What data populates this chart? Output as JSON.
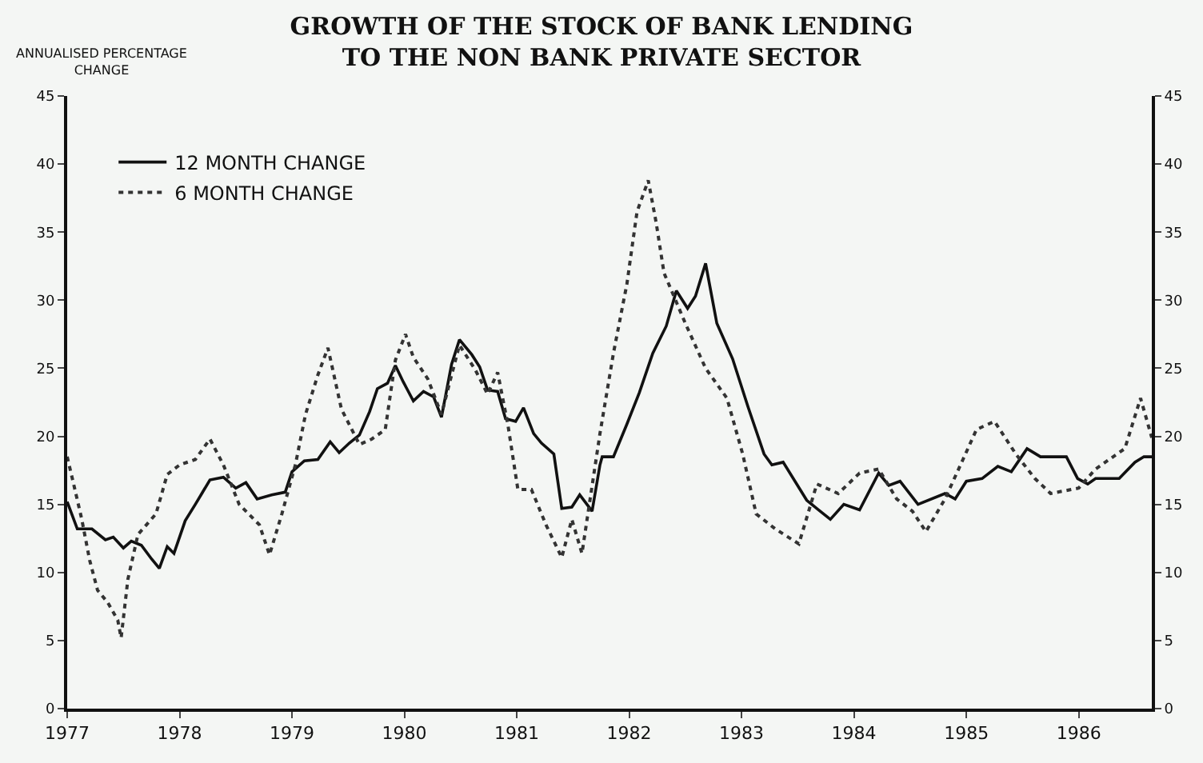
{
  "chart_data": {
    "type": "line",
    "title": "GROWTH OF THE STOCK OF BANK LENDING\nTO THE NON BANK PRIVATE SECTOR",
    "ylabel": "ANNUALISED PERCENTAGE\nCHANGE",
    "series": [
      {
        "name": "12 MONTH CHANGE",
        "color": "#111111",
        "line_style": "solid",
        "x": [
          1977.0,
          1977.09,
          1977.22,
          1977.34,
          1977.41,
          1977.5,
          1977.57,
          1977.66,
          1977.75,
          1977.82,
          1977.89,
          1977.95,
          1978.05,
          1978.14,
          1978.27,
          1978.39,
          1978.5,
          1978.59,
          1978.69,
          1978.82,
          1978.94,
          1979.0,
          1979.11,
          1979.23,
          1979.34,
          1979.42,
          1979.51,
          1979.6,
          1979.69,
          1979.76,
          1979.85,
          1979.92,
          1979.99,
          1980.08,
          1980.17,
          1980.26,
          1980.33,
          1980.42,
          1980.49,
          1980.6,
          1980.67,
          1980.74,
          1980.83,
          1980.9,
          1980.99,
          1981.06,
          1981.15,
          1981.22,
          1981.33,
          1981.4,
          1981.49,
          1981.56,
          1981.67,
          1981.74,
          1981.76,
          1981.86,
          1981.98,
          1982.09,
          1982.21,
          1982.33,
          1982.42,
          1982.52,
          1982.59,
          1982.68,
          1982.78,
          1982.92,
          1983.06,
          1983.2,
          1983.27,
          1983.37,
          1983.58,
          1983.67,
          1983.79,
          1983.91,
          1984.05,
          1984.22,
          1984.31,
          1984.41,
          1984.57,
          1984.81,
          1984.9,
          1985.0,
          1985.14,
          1985.28,
          1985.4,
          1985.54,
          1985.66,
          1985.89,
          1985.99,
          1986.08,
          1986.15,
          1986.36,
          1986.5,
          1986.58,
          1986.65
        ],
        "values": [
          15.2,
          13.2,
          13.2,
          12.4,
          12.6,
          11.8,
          12.3,
          12.0,
          11.0,
          10.3,
          11.9,
          11.4,
          13.8,
          15.0,
          16.8,
          17.0,
          16.2,
          16.6,
          15.4,
          15.7,
          15.9,
          17.4,
          18.2,
          18.3,
          19.6,
          18.8,
          19.5,
          20.1,
          21.8,
          23.5,
          23.9,
          25.2,
          24.0,
          22.6,
          23.3,
          22.9,
          21.4,
          25.3,
          27.1,
          26.0,
          25.1,
          23.4,
          23.3,
          21.3,
          21.1,
          22.1,
          20.2,
          19.5,
          18.7,
          14.7,
          14.8,
          15.7,
          14.5,
          17.9,
          18.5,
          18.5,
          20.9,
          23.2,
          26.1,
          28.1,
          30.7,
          29.4,
          30.3,
          32.7,
          28.3,
          25.7,
          22.1,
          18.7,
          17.9,
          18.1,
          15.3,
          14.7,
          13.9,
          15.0,
          14.6,
          17.3,
          16.4,
          16.7,
          15.0,
          15.8,
          15.4,
          16.7,
          16.9,
          17.8,
          17.4,
          19.1,
          18.5,
          18.5,
          16.9,
          16.5,
          16.9,
          16.9,
          18.1,
          18.5,
          18.5
        ]
      },
      {
        "name": "6 MONTH CHANGE",
        "color": "#333333",
        "line_style": "dotted",
        "x": [
          1977.0,
          1977.06,
          1977.13,
          1977.2,
          1977.27,
          1977.36,
          1977.45,
          1977.48,
          1977.54,
          1977.63,
          1977.79,
          1977.89,
          1978.0,
          1978.14,
          1978.27,
          1978.39,
          1978.53,
          1978.71,
          1978.8,
          1978.91,
          1979.03,
          1979.12,
          1979.23,
          1979.32,
          1979.44,
          1979.6,
          1979.71,
          1979.83,
          1979.92,
          1980.01,
          1980.08,
          1980.21,
          1980.33,
          1980.42,
          1980.49,
          1980.63,
          1980.74,
          1980.83,
          1980.92,
          1981.01,
          1981.13,
          1981.26,
          1981.4,
          1981.49,
          1981.58,
          1981.74,
          1981.86,
          1981.98,
          1982.07,
          1982.17,
          1982.24,
          1982.31,
          1982.5,
          1982.68,
          1982.87,
          1983.01,
          1983.13,
          1983.3,
          1983.51,
          1983.67,
          1983.86,
          1984.05,
          1984.22,
          1984.38,
          1984.52,
          1984.64,
          1984.81,
          1984.97,
          1985.09,
          1985.25,
          1985.44,
          1985.61,
          1985.75,
          1986.0,
          1986.15,
          1986.41,
          1986.55,
          1986.65
        ],
        "values": [
          18.5,
          16.4,
          13.9,
          10.9,
          8.7,
          7.8,
          6.5,
          5.2,
          9.5,
          12.8,
          14.3,
          17.2,
          17.9,
          18.3,
          19.8,
          17.9,
          15.0,
          13.5,
          11.3,
          14.3,
          17.9,
          21.6,
          24.5,
          26.5,
          22.0,
          19.4,
          19.8,
          20.5,
          25.6,
          27.5,
          25.8,
          24.2,
          21.6,
          24.5,
          26.7,
          24.9,
          23.1,
          24.7,
          20.9,
          16.1,
          16.1,
          13.5,
          11.1,
          13.9,
          11.4,
          20.2,
          26.1,
          31.2,
          36.5,
          38.8,
          35.7,
          32.0,
          28.3,
          25.0,
          22.8,
          18.7,
          14.3,
          13.2,
          12.1,
          16.5,
          15.8,
          17.3,
          17.6,
          15.4,
          14.5,
          13.0,
          15.4,
          18.3,
          20.5,
          21.1,
          18.7,
          16.9,
          15.8,
          16.2,
          17.6,
          19.1,
          22.8,
          19.9
        ]
      }
    ],
    "xlim": [
      1977,
      1986.65
    ],
    "xticks": [
      1977,
      1978,
      1979,
      1980,
      1981,
      1982,
      1983,
      1984,
      1985,
      1986
    ],
    "ylim": [
      0,
      45
    ],
    "yticks": [
      0,
      5,
      10,
      15,
      20,
      25,
      30,
      35,
      40,
      45
    ],
    "y2lim": [
      0,
      45
    ],
    "y2ticks": [
      0,
      5,
      10,
      15,
      20,
      25,
      30,
      35,
      40,
      45
    ],
    "grid": false,
    "legend": "top left",
    "marker": "none"
  }
}
